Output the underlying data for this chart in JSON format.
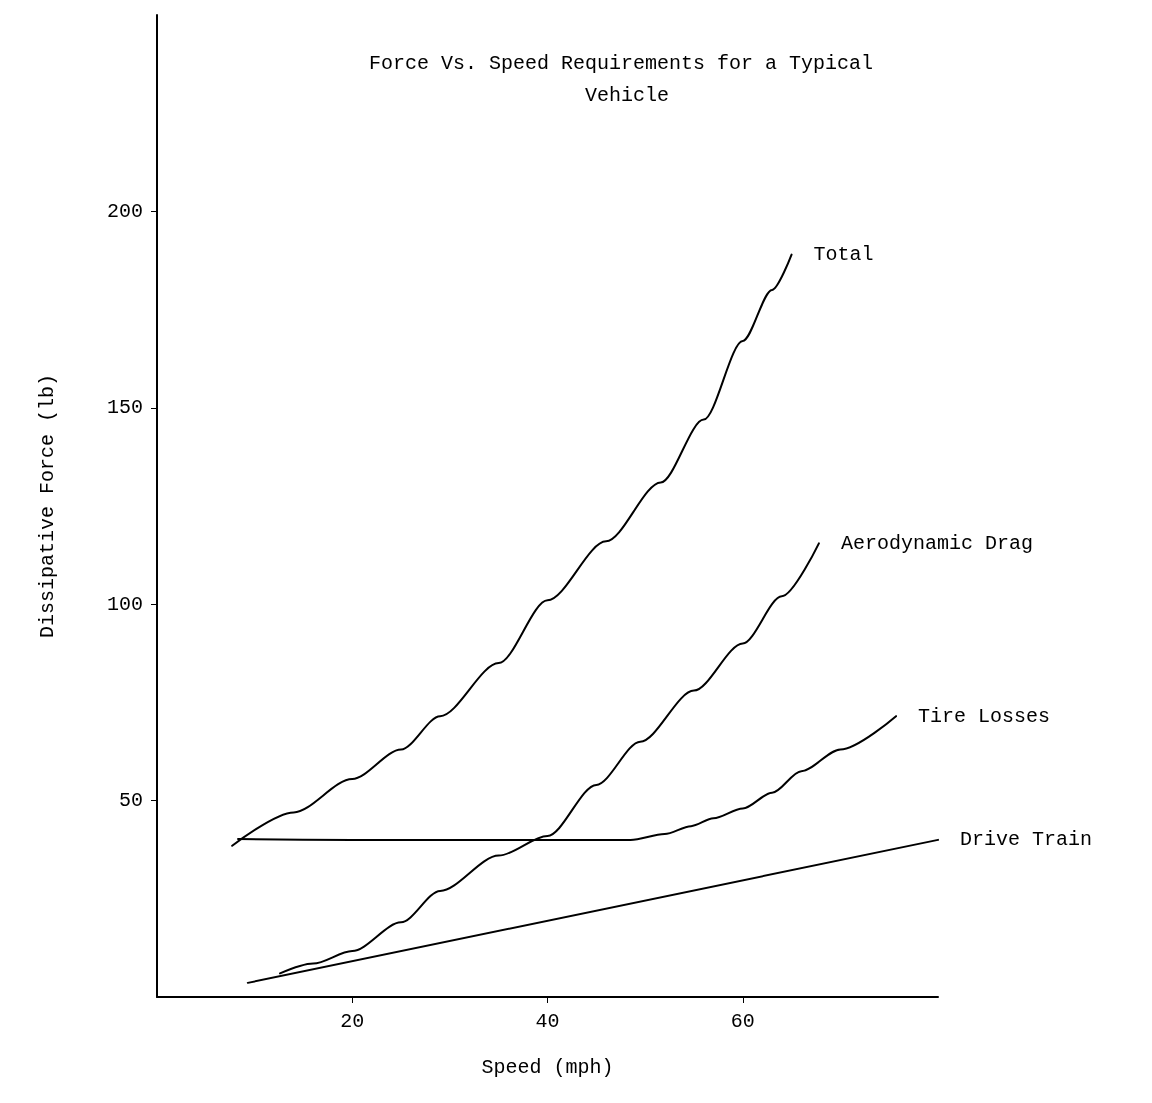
{
  "chart_data": {
    "type": "line",
    "title": "Force Vs. Speed Requirements for a Typical Vehicle",
    "xlabel": "Speed (mph)",
    "ylabel": "Dissipative Force (lb)",
    "xlim": [
      0,
      80
    ],
    "xticks": [
      20,
      40,
      60
    ],
    "ylim": [
      0,
      250
    ],
    "yticks": [
      50,
      100,
      150,
      200
    ],
    "grid": false,
    "legend": false,
    "marker": "none",
    "line_style": "solid",
    "series": [
      {
        "name": "Total",
        "color": "#000000",
        "x": [
          7.7,
          14,
          20,
          25,
          29,
          35,
          40,
          46,
          51.6,
          56,
          60,
          63,
          65
        ],
        "values": [
          38.5,
          47,
          55.5,
          63,
          71.5,
          85,
          101,
          116,
          131,
          147,
          167,
          180,
          189
        ]
      },
      {
        "name": "Aerodynamic Drag",
        "color": "#000000",
        "x": [
          12.6,
          16,
          20,
          25,
          29,
          35,
          40,
          45,
          49.5,
          55,
          60,
          64,
          67.8
        ],
        "values": [
          6,
          8.5,
          11.7,
          19,
          27,
          36,
          41,
          54,
          65,
          78,
          90,
          102,
          115.5
        ]
      },
      {
        "name": "Tire Losses",
        "color": "#000000",
        "x": [
          8.3,
          20,
          30,
          40,
          48.5,
          52,
          54.7,
          57,
          60,
          63,
          66,
          70,
          75.7
        ],
        "values": [
          40.2,
          40,
          40,
          40,
          40,
          41.5,
          43.5,
          45.5,
          48,
          52,
          57.5,
          63,
          71.5
        ]
      },
      {
        "name": "Drive Train",
        "color": "#000000",
        "x": [
          9.3,
          80
        ],
        "values": [
          3.6,
          40
        ]
      }
    ]
  }
}
